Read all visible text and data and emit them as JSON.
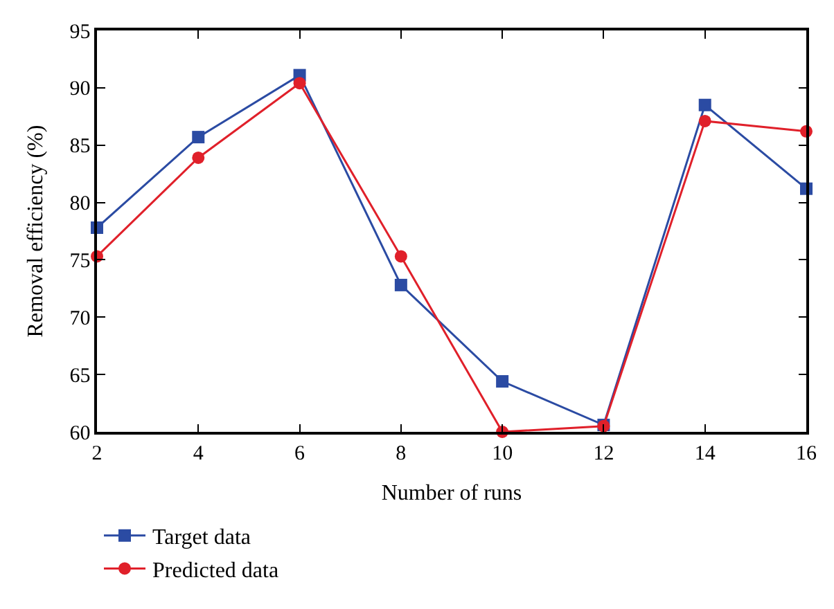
{
  "chart_data": {
    "type": "line",
    "xlabel": "Number of runs",
    "ylabel": "Removal efficiency (%)",
    "x": [
      2,
      4,
      6,
      8,
      10,
      12,
      14,
      16
    ],
    "series": [
      {
        "name": "Target data",
        "color": "#2b4ba3",
        "marker": "square",
        "values": [
          77.8,
          85.7,
          91.1,
          72.8,
          64.4,
          60.6,
          88.5,
          81.2
        ]
      },
      {
        "name": "Predicted data",
        "color": "#e0202a",
        "marker": "circle",
        "values": [
          75.3,
          83.9,
          90.4,
          75.3,
          60.0,
          60.5,
          87.1,
          86.2
        ]
      }
    ],
    "xlim": [
      2,
      16
    ],
    "xticks": [
      2,
      4,
      6,
      8,
      10,
      12,
      14,
      16
    ],
    "ylim": [
      60,
      95
    ],
    "yticks": [
      60,
      65,
      70,
      75,
      80,
      85,
      90,
      95
    ],
    "legend": "bottom left",
    "line_style": "solid"
  }
}
